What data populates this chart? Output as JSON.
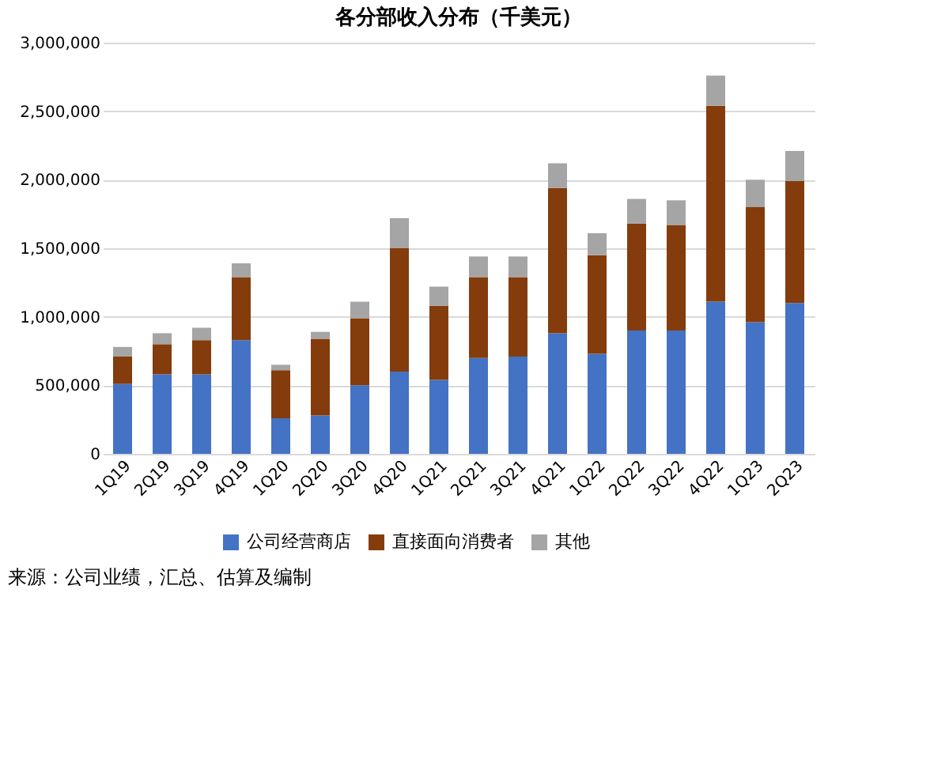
{
  "chart_data": {
    "type": "bar",
    "stacked": true,
    "title": "各分部收入分布（千美元）",
    "categories": [
      "1Q19",
      "2Q19",
      "3Q19",
      "4Q19",
      "1Q20",
      "2Q20",
      "3Q20",
      "4Q20",
      "1Q21",
      "2Q21",
      "3Q21",
      "4Q21",
      "1Q22",
      "2Q22",
      "3Q22",
      "4Q22",
      "1Q23",
      "2Q23"
    ],
    "series": [
      {
        "name": "公司经营商店",
        "color": "#4472c4",
        "values": [
          510000,
          580000,
          580000,
          830000,
          260000,
          280000,
          500000,
          600000,
          540000,
          700000,
          710000,
          880000,
          730000,
          900000,
          900000,
          1110000,
          960000,
          1100000
        ]
      },
      {
        "name": "直接面向消费者",
        "color": "#843c0c",
        "values": [
          200000,
          220000,
          250000,
          460000,
          350000,
          560000,
          490000,
          900000,
          540000,
          590000,
          580000,
          1060000,
          720000,
          780000,
          770000,
          1430000,
          840000,
          890000
        ]
      },
      {
        "name": "其他",
        "color": "#a5a5a5",
        "values": [
          70000,
          80000,
          90000,
          100000,
          40000,
          50000,
          120000,
          220000,
          140000,
          150000,
          150000,
          180000,
          160000,
          180000,
          180000,
          220000,
          200000,
          220000
        ]
      }
    ],
    "ylim": [
      0,
      3000000
    ],
    "yticks": [
      0,
      {
        "value": 500000,
        "label": "500,000"
      },
      {
        "value": 1000000,
        "label": "1,000,000"
      },
      {
        "value": 1500000,
        "label": "1,500,000"
      },
      {
        "value": 2000000,
        "label": "2,000,000"
      },
      {
        "value": 2500000,
        "label": "2,500,000"
      },
      {
        "value": 3000000,
        "label": "3,000,000"
      }
    ],
    "grid": "y",
    "legend": "bottom",
    "annotations": [
      "来源：公司业绩，汇总、估算及编制"
    ]
  }
}
